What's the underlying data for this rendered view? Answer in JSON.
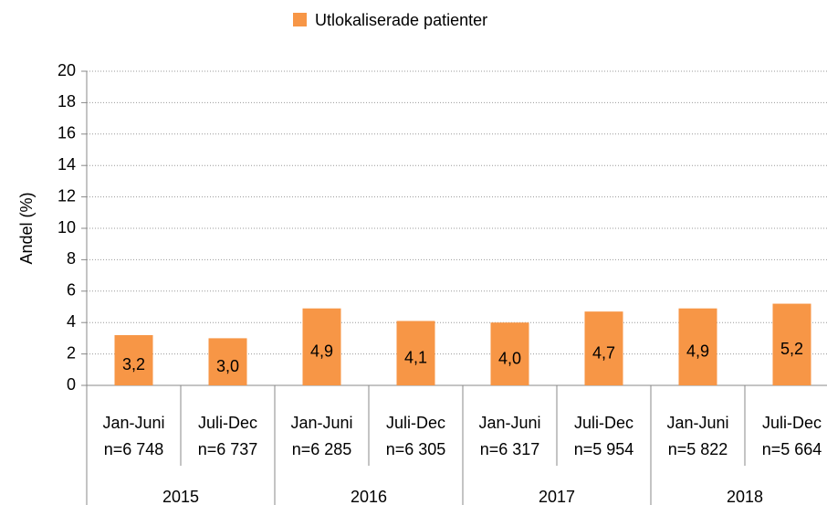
{
  "chart_data": {
    "type": "bar",
    "legend": "Utlokaliserade patienter",
    "y_label": "Andel (%)",
    "categories": [
      "Jan-Juni",
      "Juli-Dec",
      "Jan-Juni",
      "Juli-Dec",
      "Jan-Juni",
      "Juli-Dec",
      "Jan-Juni",
      "Juli-Dec"
    ],
    "n_labels": [
      "n=6 748",
      "n=6 737",
      "n=6 285",
      "n=6 305",
      "n=6 317",
      "n=5 954",
      "n=5 822",
      "n=5 664"
    ],
    "groups": [
      "2015",
      "2016",
      "2017",
      "2018"
    ],
    "values": [
      3.2,
      3.0,
      4.9,
      4.1,
      4.0,
      4.7,
      4.9,
      5.2
    ],
    "value_labels": [
      "3,2",
      "3,0",
      "4,9",
      "4,1",
      "4,0",
      "4,7",
      "4,9",
      "5,2"
    ],
    "color": "#f79646",
    "ylim": [
      0,
      20
    ],
    "yticks": [
      0,
      2,
      4,
      6,
      8,
      10,
      12,
      14,
      16,
      18,
      20
    ],
    "grid": true
  }
}
